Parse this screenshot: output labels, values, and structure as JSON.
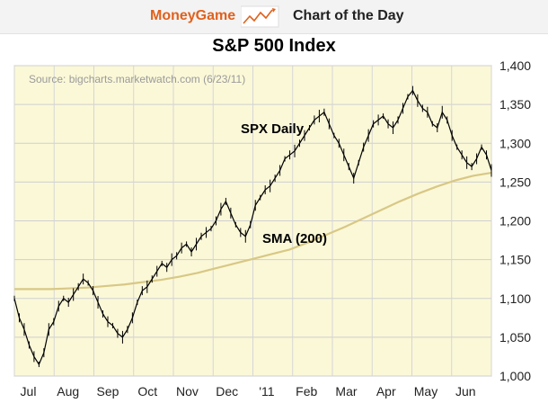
{
  "header": {
    "brand": "MoneyGame",
    "tagline": "Chart of the Day",
    "brand_color": "#e0611d"
  },
  "chart_data": {
    "type": "line",
    "title": "S&P 500 Index",
    "source": "Source: bigcharts.marketwatch.com (6/23/11)",
    "xlabel": "",
    "ylabel": "",
    "ylim": [
      1000,
      1400
    ],
    "yticks": [
      1000,
      1050,
      1100,
      1150,
      1200,
      1250,
      1300,
      1350,
      1400
    ],
    "ytick_labels": [
      "1,000",
      "1,050",
      "1,100",
      "1,150",
      "1,200",
      "1,250",
      "1,300",
      "1,350",
      "1,400"
    ],
    "xtick_labels": [
      "Jul",
      "Aug",
      "Sep",
      "Oct",
      "Nov",
      "Dec",
      "'11",
      "Feb",
      "Mar",
      "Apr",
      "May",
      "Jun"
    ],
    "grid": true,
    "background_color": "#fbf8d8",
    "series": [
      {
        "name": "SPX Daily",
        "color": "#000000",
        "values": [
          1100,
          1075,
          1060,
          1040,
          1025,
          1015,
          1030,
          1060,
          1070,
          1090,
          1100,
          1095,
          1105,
          1115,
          1125,
          1120,
          1110,
          1095,
          1080,
          1070,
          1065,
          1055,
          1050,
          1060,
          1075,
          1095,
          1110,
          1115,
          1125,
          1135,
          1145,
          1140,
          1150,
          1155,
          1165,
          1170,
          1160,
          1170,
          1180,
          1185,
          1190,
          1200,
          1215,
          1225,
          1210,
          1195,
          1185,
          1180,
          1195,
          1220,
          1230,
          1240,
          1245,
          1255,
          1265,
          1280,
          1285,
          1290,
          1300,
          1310,
          1320,
          1330,
          1335,
          1340,
          1325,
          1310,
          1300,
          1285,
          1270,
          1255,
          1275,
          1295,
          1310,
          1325,
          1330,
          1335,
          1325,
          1320,
          1330,
          1345,
          1360,
          1368,
          1355,
          1345,
          1340,
          1325,
          1320,
          1340,
          1330,
          1310,
          1295,
          1285,
          1275,
          1270,
          1280,
          1295,
          1285,
          1265
        ]
      },
      {
        "name": "SMA (200)",
        "color": "#d8c885",
        "values": [
          1112,
          1112,
          1112,
          1113,
          1114,
          1116,
          1118,
          1121,
          1124,
          1128,
          1133,
          1139,
          1145,
          1151,
          1157,
          1163,
          1172,
          1182,
          1192,
          1203,
          1214,
          1225,
          1235,
          1244,
          1252,
          1258,
          1262
        ]
      }
    ],
    "annotations": [
      "SPX Daily",
      "SMA (200)"
    ]
  }
}
